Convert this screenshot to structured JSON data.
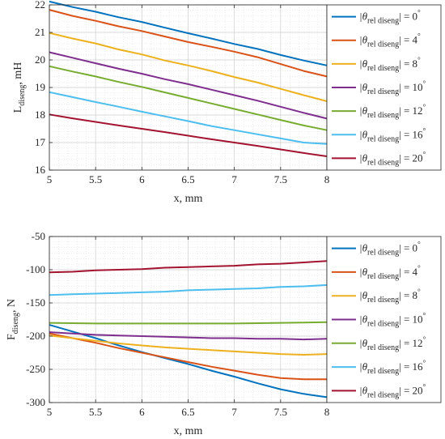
{
  "chart_data": [
    {
      "type": "line",
      "xlabel": "x, mm",
      "ylabel_main": "L",
      "ylabel_sub": "diseng",
      "ylabel_tail": ", mH",
      "xlim": [
        5,
        8
      ],
      "ylim": [
        16,
        22
      ],
      "xticks": [
        5,
        5.5,
        6,
        6.5,
        7,
        7.5,
        8
      ],
      "xtick_labels": [
        "5",
        "5.5",
        "6",
        "6.5",
        "7",
        "7.5",
        "8"
      ],
      "yticks": [
        16,
        17,
        18,
        19,
        20,
        21,
        22
      ],
      "ytick_labels": [
        "16",
        "17",
        "18",
        "19",
        "20",
        "21",
        "22"
      ],
      "grid": true,
      "legend": "outside-right",
      "x": [
        5,
        5.25,
        5.5,
        5.75,
        6,
        6.25,
        6.5,
        6.75,
        7,
        7.25,
        7.5,
        7.75,
        8
      ],
      "series": [
        {
          "name": "0",
          "color": "#0072bd",
          "values": [
            22.12,
            21.92,
            21.75,
            21.55,
            21.38,
            21.17,
            20.97,
            20.78,
            20.58,
            20.4,
            20.18,
            19.98,
            19.8
          ]
        },
        {
          "name": "4",
          "color": "#d95319",
          "values": [
            21.82,
            21.6,
            21.42,
            21.22,
            21.05,
            20.85,
            20.65,
            20.48,
            20.3,
            20.1,
            19.85,
            19.6,
            19.4
          ]
        },
        {
          "name": "8",
          "color": "#edb120",
          "values": [
            20.98,
            20.78,
            20.6,
            20.38,
            20.2,
            19.98,
            19.8,
            19.6,
            19.38,
            19.18,
            18.95,
            18.72,
            18.5
          ]
        },
        {
          "name": "10",
          "color": "#7e2f8e",
          "values": [
            20.28,
            20.08,
            19.88,
            19.68,
            19.5,
            19.3,
            19.12,
            18.92,
            18.72,
            18.52,
            18.3,
            18.08,
            17.87
          ]
        },
        {
          "name": "12",
          "color": "#77ac30",
          "values": [
            19.77,
            19.58,
            19.4,
            19.2,
            19.02,
            18.82,
            18.62,
            18.42,
            18.22,
            18.02,
            17.82,
            17.62,
            17.45
          ]
        },
        {
          "name": "16",
          "color": "#4dbeee",
          "values": [
            18.83,
            18.65,
            18.47,
            18.3,
            18.12,
            17.95,
            17.78,
            17.6,
            17.45,
            17.3,
            17.15,
            17.0,
            16.95
          ]
        },
        {
          "name": "20",
          "color": "#a2142f",
          "values": [
            18.02,
            17.88,
            17.75,
            17.62,
            17.5,
            17.38,
            17.25,
            17.12,
            17.0,
            16.88,
            16.75,
            16.62,
            16.5
          ]
        }
      ]
    },
    {
      "type": "line",
      "xlabel": "x, mm",
      "ylabel_main": "F",
      "ylabel_sub": "diseng",
      "ylabel_tail": ", N",
      "xlim": [
        5,
        8
      ],
      "ylim": [
        -300,
        -50
      ],
      "xticks": [
        5,
        5.5,
        6,
        6.5,
        7,
        7.5,
        8
      ],
      "xtick_labels": [
        "5",
        "5.5",
        "6",
        "6.5",
        "7",
        "7.5",
        "8"
      ],
      "yticks": [
        -300,
        -250,
        -200,
        -150,
        -100,
        -50
      ],
      "ytick_labels": [
        "-300",
        "-250",
        "-200",
        "-150",
        "-100",
        "-50"
      ],
      "grid": true,
      "legend": "outside-right",
      "x": [
        5,
        5.25,
        5.5,
        5.75,
        6,
        6.25,
        6.5,
        6.75,
        7,
        7.25,
        7.5,
        7.75,
        8
      ],
      "series": [
        {
          "name": "0",
          "color": "#0072bd",
          "values": [
            -183,
            -193,
            -203,
            -214,
            -224,
            -233,
            -242,
            -252,
            -261,
            -271,
            -280,
            -287,
            -292
          ]
        },
        {
          "name": "4",
          "color": "#d95319",
          "values": [
            -196,
            -203,
            -210,
            -218,
            -225,
            -232,
            -239,
            -246,
            -252,
            -258,
            -263,
            -265,
            -265
          ]
        },
        {
          "name": "8",
          "color": "#edb120",
          "values": [
            -199,
            -203,
            -207,
            -211,
            -214,
            -217,
            -219,
            -221,
            -223,
            -225,
            -227,
            -228,
            -227
          ]
        },
        {
          "name": "10",
          "color": "#7e2f8e",
          "values": [
            -194,
            -196,
            -198,
            -199,
            -200,
            -201,
            -202,
            -203,
            -203,
            -204,
            -204,
            -205,
            -204
          ]
        },
        {
          "name": "12",
          "color": "#77ac30",
          "values": [
            -180,
            -180.5,
            -181,
            -181,
            -181,
            -181,
            -181,
            -181,
            -181,
            -180.5,
            -180,
            -179.5,
            -179
          ]
        },
        {
          "name": "16",
          "color": "#4dbeee",
          "values": [
            -138,
            -137,
            -136,
            -135,
            -134,
            -133,
            -131,
            -130,
            -129,
            -128,
            -126,
            -125,
            -123
          ]
        },
        {
          "name": "20",
          "color": "#a2142f",
          "values": [
            -104,
            -103,
            -101,
            -100,
            -99,
            -97,
            -96,
            -95,
            -94,
            -92,
            -91,
            -89,
            -87
          ]
        }
      ]
    }
  ],
  "legend_text": {
    "prefix": "|θ",
    "sub": "rel diseng",
    "mid": "| = ",
    "suffix": "°"
  }
}
